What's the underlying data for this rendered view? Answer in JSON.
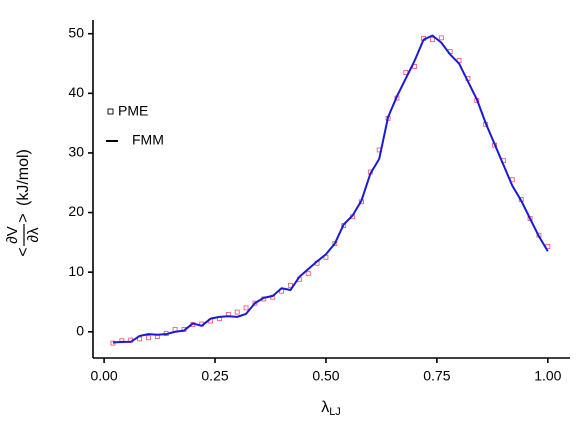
{
  "chart_data": {
    "type": "line",
    "x_label": {
      "text": "λ",
      "subscript": "LJ"
    },
    "y_label": {
      "open": "<",
      "numerator": "∂V",
      "denominator": "∂λ",
      "close": ">",
      "unit": "(kJ/mol)"
    },
    "x": [
      0.02,
      0.04,
      0.06,
      0.08,
      0.1,
      0.12,
      0.14,
      0.16,
      0.18,
      0.2,
      0.22,
      0.24,
      0.26,
      0.28,
      0.3,
      0.32,
      0.34,
      0.36,
      0.38,
      0.4,
      0.42,
      0.44,
      0.46,
      0.48,
      0.5,
      0.52,
      0.54,
      0.56,
      0.58,
      0.6,
      0.62,
      0.64,
      0.66,
      0.68,
      0.7,
      0.72,
      0.74,
      0.76,
      0.78,
      0.8,
      0.82,
      0.84,
      0.86,
      0.88,
      0.9,
      0.92,
      0.94,
      0.96,
      0.98,
      1.0
    ],
    "series": [
      {
        "name": "PME",
        "color": "#e8506a",
        "marker": "square",
        "values": [
          -1.9,
          -1.5,
          -1.4,
          -1.2,
          -1.0,
          -0.8,
          -0.3,
          0.4,
          0.4,
          1.2,
          1.3,
          1.8,
          2.2,
          2.9,
          3.3,
          4.0,
          4.8,
          5.5,
          5.8,
          6.8,
          7.8,
          8.8,
          9.8,
          11.5,
          12.5,
          14.8,
          17.8,
          19.3,
          21.8,
          26.8,
          30.5,
          35.8,
          39.2,
          43.5,
          44.5,
          49.2,
          49.0,
          49.3,
          47.0,
          45.5,
          42.5,
          38.8,
          34.8,
          31.3,
          28.7,
          25.5,
          22.2,
          19.0,
          16.2,
          14.3
        ]
      },
      {
        "name": "FMM",
        "color": "#1a1ad6",
        "marker": "line",
        "values": [
          -1.8,
          -1.7,
          -1.7,
          -0.7,
          -0.4,
          -0.5,
          -0.4,
          0.0,
          0.2,
          1.4,
          1.0,
          2.2,
          2.5,
          2.6,
          2.5,
          3.0,
          4.8,
          5.7,
          6.0,
          7.3,
          7.0,
          9.2,
          10.5,
          11.8,
          13.0,
          14.8,
          18.0,
          19.5,
          22.0,
          26.5,
          29.0,
          36.0,
          39.5,
          42.5,
          45.5,
          49.0,
          49.7,
          48.5,
          46.5,
          45.0,
          42.0,
          39.0,
          35.0,
          31.5,
          28.0,
          24.5,
          22.0,
          19.0,
          16.0,
          13.5
        ]
      }
    ],
    "xlim": [
      -0.025,
      1.05
    ],
    "xticks": [
      {
        "value": 0,
        "label": "0.00"
      },
      {
        "value": 0.25,
        "label": "0.25"
      },
      {
        "value": 0.5,
        "label": "0.50"
      },
      {
        "value": 0.75,
        "label": "0.75"
      },
      {
        "value": 1,
        "label": "1.00"
      }
    ],
    "ylim": [
      -4.4,
      52.3
    ],
    "yticks": [
      0,
      10,
      20,
      30,
      40,
      50
    ],
    "grid": false,
    "legend": "upper-left"
  }
}
